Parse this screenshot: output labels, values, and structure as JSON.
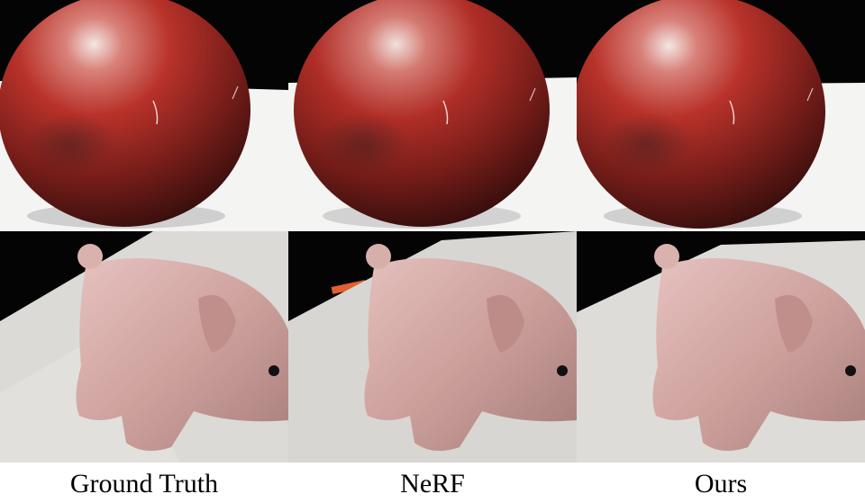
{
  "captions": {
    "ground_truth": "Ground Truth",
    "nerf": "NeRF",
    "ours": "Ours"
  },
  "scenes": {
    "top_row": "red-sphere",
    "bottom_row": "pink-plush-pig"
  },
  "colors": {
    "background_dark": "#050505",
    "table_white": "#f4f4f2",
    "sphere_red": "#b32620",
    "pig_pink": "#d9b0ac",
    "cloth_gray": "#dcdad6"
  }
}
